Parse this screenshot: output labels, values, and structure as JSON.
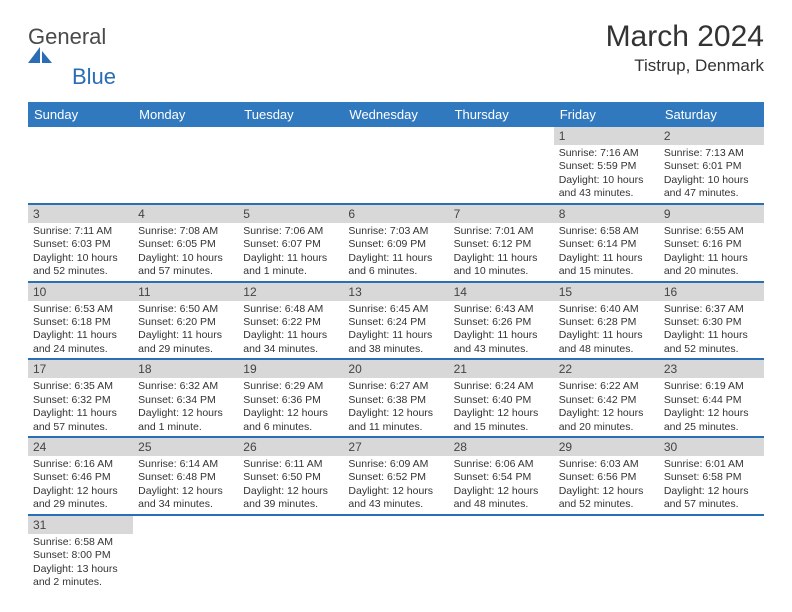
{
  "logo": {
    "text1": "General",
    "text2": "Blue"
  },
  "title": "March 2024",
  "location": "Tistrup, Denmark",
  "colors": {
    "header": "#3179be",
    "rule": "#2a6fb3",
    "daybar": "#d8d8d8",
    "text": "#333"
  },
  "day_labels": [
    "Sunday",
    "Monday",
    "Tuesday",
    "Wednesday",
    "Thursday",
    "Friday",
    "Saturday"
  ],
  "weeks": [
    [
      null,
      null,
      null,
      null,
      null,
      {
        "n": "1",
        "sr": "7:16 AM",
        "ss": "5:59 PM",
        "dl": "10 hours and 43 minutes."
      },
      {
        "n": "2",
        "sr": "7:13 AM",
        "ss": "6:01 PM",
        "dl": "10 hours and 47 minutes."
      }
    ],
    [
      {
        "n": "3",
        "sr": "7:11 AM",
        "ss": "6:03 PM",
        "dl": "10 hours and 52 minutes."
      },
      {
        "n": "4",
        "sr": "7:08 AM",
        "ss": "6:05 PM",
        "dl": "10 hours and 57 minutes."
      },
      {
        "n": "5",
        "sr": "7:06 AM",
        "ss": "6:07 PM",
        "dl": "11 hours and 1 minute."
      },
      {
        "n": "6",
        "sr": "7:03 AM",
        "ss": "6:09 PM",
        "dl": "11 hours and 6 minutes."
      },
      {
        "n": "7",
        "sr": "7:01 AM",
        "ss": "6:12 PM",
        "dl": "11 hours and 10 minutes."
      },
      {
        "n": "8",
        "sr": "6:58 AM",
        "ss": "6:14 PM",
        "dl": "11 hours and 15 minutes."
      },
      {
        "n": "9",
        "sr": "6:55 AM",
        "ss": "6:16 PM",
        "dl": "11 hours and 20 minutes."
      }
    ],
    [
      {
        "n": "10",
        "sr": "6:53 AM",
        "ss": "6:18 PM",
        "dl": "11 hours and 24 minutes."
      },
      {
        "n": "11",
        "sr": "6:50 AM",
        "ss": "6:20 PM",
        "dl": "11 hours and 29 minutes."
      },
      {
        "n": "12",
        "sr": "6:48 AM",
        "ss": "6:22 PM",
        "dl": "11 hours and 34 minutes."
      },
      {
        "n": "13",
        "sr": "6:45 AM",
        "ss": "6:24 PM",
        "dl": "11 hours and 38 minutes."
      },
      {
        "n": "14",
        "sr": "6:43 AM",
        "ss": "6:26 PM",
        "dl": "11 hours and 43 minutes."
      },
      {
        "n": "15",
        "sr": "6:40 AM",
        "ss": "6:28 PM",
        "dl": "11 hours and 48 minutes."
      },
      {
        "n": "16",
        "sr": "6:37 AM",
        "ss": "6:30 PM",
        "dl": "11 hours and 52 minutes."
      }
    ],
    [
      {
        "n": "17",
        "sr": "6:35 AM",
        "ss": "6:32 PM",
        "dl": "11 hours and 57 minutes."
      },
      {
        "n": "18",
        "sr": "6:32 AM",
        "ss": "6:34 PM",
        "dl": "12 hours and 1 minute."
      },
      {
        "n": "19",
        "sr": "6:29 AM",
        "ss": "6:36 PM",
        "dl": "12 hours and 6 minutes."
      },
      {
        "n": "20",
        "sr": "6:27 AM",
        "ss": "6:38 PM",
        "dl": "12 hours and 11 minutes."
      },
      {
        "n": "21",
        "sr": "6:24 AM",
        "ss": "6:40 PM",
        "dl": "12 hours and 15 minutes."
      },
      {
        "n": "22",
        "sr": "6:22 AM",
        "ss": "6:42 PM",
        "dl": "12 hours and 20 minutes."
      },
      {
        "n": "23",
        "sr": "6:19 AM",
        "ss": "6:44 PM",
        "dl": "12 hours and 25 minutes."
      }
    ],
    [
      {
        "n": "24",
        "sr": "6:16 AM",
        "ss": "6:46 PM",
        "dl": "12 hours and 29 minutes."
      },
      {
        "n": "25",
        "sr": "6:14 AM",
        "ss": "6:48 PM",
        "dl": "12 hours and 34 minutes."
      },
      {
        "n": "26",
        "sr": "6:11 AM",
        "ss": "6:50 PM",
        "dl": "12 hours and 39 minutes."
      },
      {
        "n": "27",
        "sr": "6:09 AM",
        "ss": "6:52 PM",
        "dl": "12 hours and 43 minutes."
      },
      {
        "n": "28",
        "sr": "6:06 AM",
        "ss": "6:54 PM",
        "dl": "12 hours and 48 minutes."
      },
      {
        "n": "29",
        "sr": "6:03 AM",
        "ss": "6:56 PM",
        "dl": "12 hours and 52 minutes."
      },
      {
        "n": "30",
        "sr": "6:01 AM",
        "ss": "6:58 PM",
        "dl": "12 hours and 57 minutes."
      }
    ],
    [
      {
        "n": "31",
        "sr": "6:58 AM",
        "ss": "8:00 PM",
        "dl": "13 hours and 2 minutes."
      },
      null,
      null,
      null,
      null,
      null,
      null
    ]
  ]
}
